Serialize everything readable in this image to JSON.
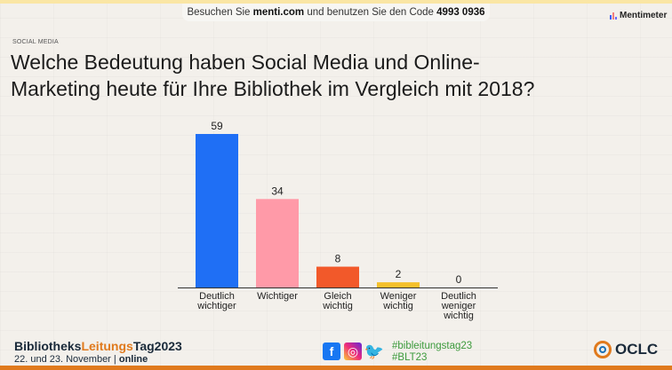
{
  "header": {
    "code_prefix": "Besuchen Sie",
    "site": "menti.com",
    "code_mid": "und benutzen Sie den Code",
    "code": "4993 0936",
    "brand": "Mentimeter"
  },
  "kicker": "SOCIAL MEDIA",
  "title": "Welche Bedeutung haben Social Media und Online-Marketing heute für Ihre Bibliothek im Vergleich mit 2018?",
  "chart_data": {
    "type": "bar",
    "categories": [
      [
        "Deutlich",
        "wichtiger"
      ],
      [
        "Wichtiger"
      ],
      [
        "Gleich",
        "wichtig"
      ],
      [
        "Weniger",
        "wichtig"
      ],
      [
        "Deutlich",
        "weniger",
        "wichtig"
      ]
    ],
    "values": [
      59,
      34,
      8,
      2,
      0
    ],
    "colors": [
      "#1f6ff5",
      "#ff9aa8",
      "#f2592a",
      "#f5c02b",
      "#9ba5b5"
    ],
    "ylim": [
      0,
      59
    ],
    "grid": false,
    "legend": "none"
  },
  "footer": {
    "brand_part1": "Bibliotheks",
    "brand_part2": "Leitungs",
    "brand_part3": "Tag2023",
    "date": "22. und 23. November",
    "mode": "online",
    "hashtag1": "#bibleitungstag23",
    "hashtag2": "#BLT23",
    "sponsor": "OCLC",
    "social_icons": [
      "facebook-icon",
      "instagram-icon",
      "twitter-icon"
    ]
  }
}
